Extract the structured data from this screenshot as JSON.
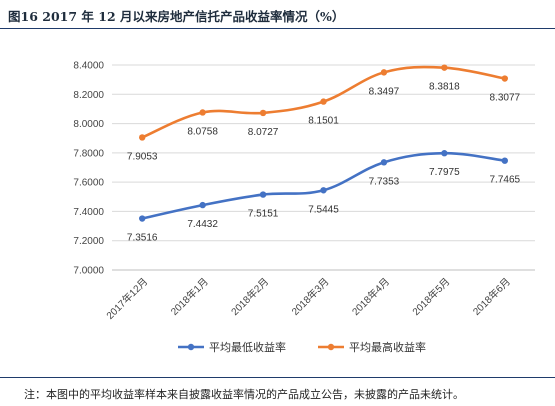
{
  "figure": {
    "title": "图16   2017 年 12 月以来房地产信托产品收益率情况（%）",
    "note": "注：本图中的平均收益率样本来自披露收益率情况的产品成立公告，未披露的产品未统计。"
  },
  "chart_data": {
    "type": "line",
    "categories": [
      "2017年12月",
      "2018年1月",
      "2018年2月",
      "2018年3月",
      "2018年4月",
      "2018年5月",
      "2018年6月"
    ],
    "series": [
      {
        "name": "平均最低收益率",
        "color": "#4472c4",
        "values": [
          7.3516,
          7.4432,
          7.5151,
          7.5445,
          7.7353,
          7.7975,
          7.7465
        ],
        "labels": [
          "7.3516",
          "7.4432",
          "7.5151",
          "7.5445",
          "7.7353",
          "7.7975",
          "7.7465"
        ]
      },
      {
        "name": "平均最高收益率",
        "color": "#ed7d31",
        "values": [
          7.9053,
          8.0758,
          8.0727,
          8.1501,
          8.3497,
          8.3818,
          8.3077
        ],
        "labels": [
          "7.9053",
          "8.0758",
          "8.0727",
          "8.1501",
          "8.3497",
          "8.3818",
          "8.3077"
        ]
      }
    ],
    "ylim": [
      7.0,
      8.4
    ],
    "yticks": [
      "7.0000",
      "7.2000",
      "7.4000",
      "7.6000",
      "7.8000",
      "8.0000",
      "8.2000",
      "8.4000"
    ],
    "ytick_values": [
      7.0,
      7.2,
      7.4,
      7.6,
      7.8,
      8.0,
      8.2,
      8.4
    ],
    "xlabel": "",
    "ylabel": "",
    "grid": true,
    "legend_position": "bottom"
  }
}
